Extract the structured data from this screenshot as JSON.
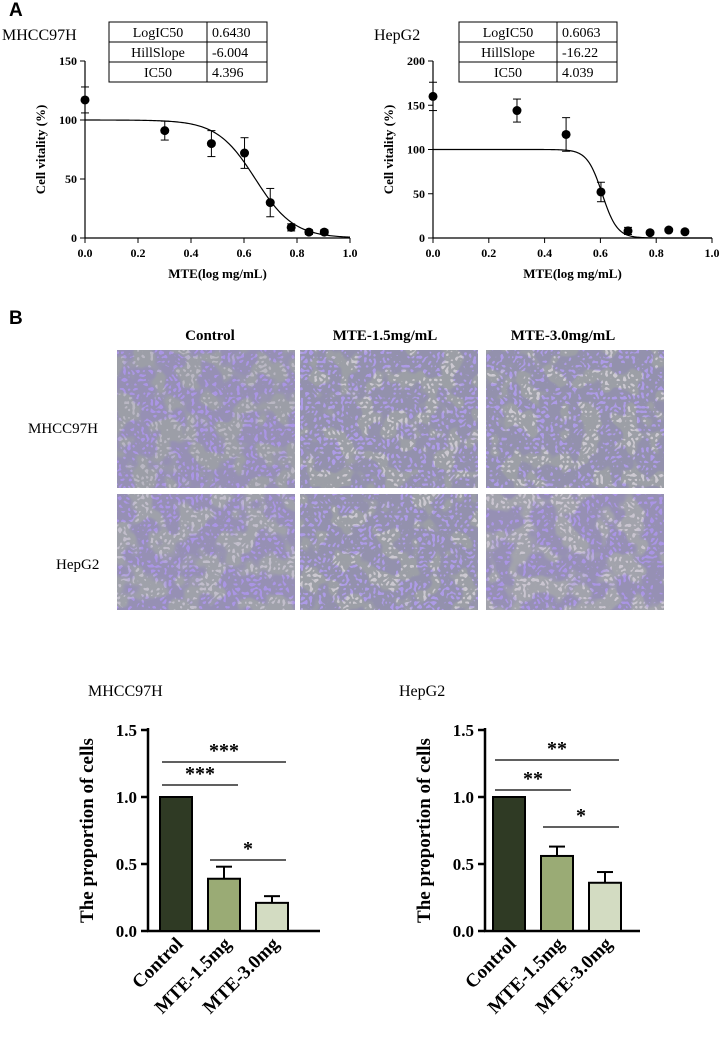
{
  "panel_a": {
    "letter": "A",
    "charts": [
      {
        "cell_line": "MHCC97H",
        "stats": [
          [
            "LogIC50",
            "0.6430"
          ],
          [
            "HillSlope",
            "-6.004"
          ],
          [
            "IC50",
            "4.396"
          ]
        ],
        "logic50": 0.643,
        "hillslope": -6.004
      },
      {
        "cell_line": "HepG2",
        "stats": [
          [
            "LogIC50",
            "0.6063"
          ],
          [
            "HillSlope",
            "-16.22"
          ],
          [
            "IC50",
            "4.039"
          ]
        ],
        "logic50": 0.6063,
        "hillslope": -16.22
      }
    ]
  },
  "panel_b": {
    "letter": "B",
    "columns": [
      "Control",
      "MTE-1.5mg/mL",
      "MTE-3.0mg/mL"
    ],
    "rows": [
      "MHCC97H",
      "HepG2"
    ]
  },
  "chart_data": [
    {
      "type": "scatter",
      "title": "MHCC97H",
      "xlabel": "MTE(log mg/mL)",
      "ylabel": "Cell vitality (%)",
      "xlim": [
        0,
        1.0
      ],
      "ylim": [
        0,
        150
      ],
      "xticks": [
        "0.0",
        "0.2",
        "0.4",
        "0.6",
        "0.8",
        "1.0"
      ],
      "yticks": [
        "0",
        "50",
        "100",
        "150"
      ],
      "points": [
        {
          "x": 0.0,
          "y": 117,
          "err": 11
        },
        {
          "x": 0.301,
          "y": 91,
          "err": 8
        },
        {
          "x": 0.477,
          "y": 80,
          "err": 11
        },
        {
          "x": 0.602,
          "y": 72,
          "err": 13
        },
        {
          "x": 0.699,
          "y": 30,
          "err": 12
        },
        {
          "x": 0.778,
          "y": 9,
          "err": 3
        },
        {
          "x": 0.845,
          "y": 5,
          "err": 2
        },
        {
          "x": 0.903,
          "y": 5,
          "err": 2
        }
      ],
      "fit": {
        "top": 100,
        "bottom": 0,
        "logic50": 0.643,
        "hillslope": -6.004
      }
    },
    {
      "type": "scatter",
      "title": "HepG2",
      "xlabel": "MTE(log mg/mL)",
      "ylabel": "Cell vitality (%)",
      "xlim": [
        0,
        1.0
      ],
      "ylim": [
        0,
        200
      ],
      "xticks": [
        "0.0",
        "0.2",
        "0.4",
        "0.6",
        "0.8",
        "1.0"
      ],
      "yticks": [
        "0",
        "50",
        "100",
        "150",
        "200"
      ],
      "points": [
        {
          "x": 0.0,
          "y": 160,
          "err": 16
        },
        {
          "x": 0.301,
          "y": 144,
          "err": 13
        },
        {
          "x": 0.477,
          "y": 117,
          "err": 19
        },
        {
          "x": 0.602,
          "y": 52,
          "err": 11
        },
        {
          "x": 0.699,
          "y": 8,
          "err": 4
        },
        {
          "x": 0.778,
          "y": 6,
          "err": 2
        },
        {
          "x": 0.845,
          "y": 9,
          "err": 2
        },
        {
          "x": 0.903,
          "y": 7,
          "err": 2
        }
      ],
      "fit": {
        "top": 100,
        "bottom": 0,
        "logic50": 0.6063,
        "hillslope": -16.22
      }
    },
    {
      "type": "bar",
      "title": "MHCC97H",
      "ylabel": "The proportion of cells",
      "categories": [
        "Control",
        "MTE-1.5mg",
        "MTE-3.0mg"
      ],
      "values": [
        1.0,
        0.39,
        0.21
      ],
      "errors": [
        0,
        0.09,
        0.05
      ],
      "ylim": [
        0,
        1.5
      ],
      "yticks": [
        "0.0",
        "0.5",
        "1.0",
        "1.5"
      ],
      "colors": [
        "#2f3a24",
        "#9aab75",
        "#d3dcc2"
      ],
      "significance": [
        {
          "from": 0,
          "to": 2,
          "label": "***"
        },
        {
          "from": 0,
          "to": 1,
          "label": "***"
        },
        {
          "from": 1,
          "to": 2,
          "label": "*"
        }
      ]
    },
    {
      "type": "bar",
      "title": "HepG2",
      "ylabel": "The proportion of cells",
      "categories": [
        "Control",
        "MTE-1.5mg",
        "MTE-3.0mg"
      ],
      "values": [
        1.0,
        0.56,
        0.36
      ],
      "errors": [
        0,
        0.07,
        0.08
      ],
      "ylim": [
        0,
        1.5
      ],
      "yticks": [
        "0.0",
        "0.5",
        "1.0",
        "1.5"
      ],
      "colors": [
        "#2f3a24",
        "#9aab75",
        "#d3dcc2"
      ],
      "significance": [
        {
          "from": 0,
          "to": 2,
          "label": "**"
        },
        {
          "from": 0,
          "to": 1,
          "label": "**"
        },
        {
          "from": 1,
          "to": 2,
          "label": "*"
        }
      ]
    }
  ]
}
